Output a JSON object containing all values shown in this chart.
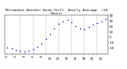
{
  "title": "Milwaukee Weather Wind Chill  Hourly Average  (24 Hours)",
  "title_fontsize": 3.2,
  "hours": [
    0,
    1,
    2,
    3,
    4,
    5,
    6,
    7,
    8,
    9,
    10,
    11,
    12,
    13,
    14,
    15,
    16,
    17,
    18,
    19,
    20,
    21,
    22,
    23
  ],
  "wind_chill": [
    -18,
    -20,
    -23,
    -25,
    -26,
    -24,
    -21,
    -17,
    -11,
    -3,
    6,
    16,
    24,
    29,
    31,
    27,
    20,
    16,
    14,
    19,
    23,
    26,
    29,
    33
  ],
  "dot_color": "#0000cc",
  "dot_size": 1.2,
  "bg_color": "#ffffff",
  "ylim": [
    -30,
    40
  ],
  "xlim": [
    -0.5,
    23.5
  ],
  "ytick_vals": [
    -20,
    -10,
    0,
    10,
    20,
    30,
    40
  ],
  "ytick_labels": [
    "-20",
    "-10",
    "0",
    "10",
    "20",
    "30",
    "40"
  ],
  "xticks": [
    0,
    1,
    2,
    3,
    4,
    5,
    6,
    7,
    8,
    9,
    10,
    11,
    12,
    13,
    14,
    15,
    16,
    17,
    18,
    19,
    20,
    21,
    22,
    23
  ],
  "grid_hours": [
    3,
    6,
    9,
    12,
    15,
    18,
    21
  ],
  "grid_color": "#888888",
  "tick_fontsize": 2.8
}
